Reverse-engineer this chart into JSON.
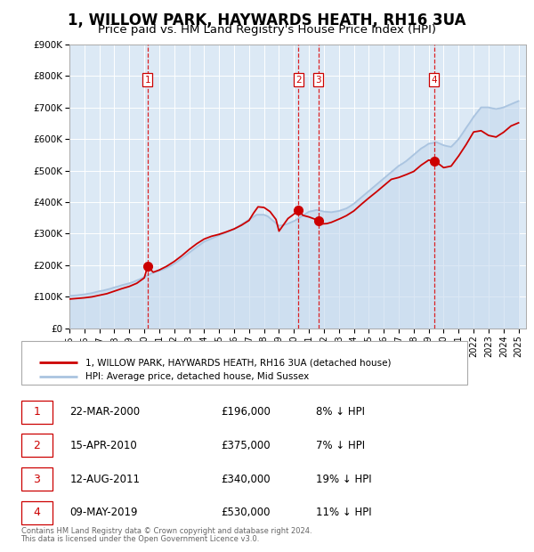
{
  "title": "1, WILLOW PARK, HAYWARDS HEATH, RH16 3UA",
  "subtitle": "Price paid vs. HM Land Registry's House Price Index (HPI)",
  "title_fontsize": 12,
  "subtitle_fontsize": 9.5,
  "background_color": "#ffffff",
  "plot_bg_color": "#dce9f5",
  "grid_color": "#ffffff",
  "ylim": [
    0,
    900000
  ],
  "yticks": [
    0,
    100000,
    200000,
    300000,
    400000,
    500000,
    600000,
    700000,
    800000,
    900000
  ],
  "ytick_labels": [
    "£0",
    "£100K",
    "£200K",
    "£300K",
    "£400K",
    "£500K",
    "£600K",
    "£700K",
    "£800K",
    "£900K"
  ],
  "xlim_start": 1995.0,
  "xlim_end": 2025.5,
  "xticks": [
    1995,
    1996,
    1997,
    1998,
    1999,
    2000,
    2001,
    2002,
    2003,
    2004,
    2005,
    2006,
    2007,
    2008,
    2009,
    2010,
    2011,
    2012,
    2013,
    2014,
    2015,
    2016,
    2017,
    2018,
    2019,
    2020,
    2021,
    2022,
    2023,
    2024,
    2025
  ],
  "hpi_color": "#aac4e0",
  "hpi_fill_color": "#c5d9ee",
  "price_color": "#cc0000",
  "sale_marker_color": "#cc0000",
  "sale_marker_size": 7,
  "dashed_line_color": "#dd0000",
  "sale_label_color": "#cc0000",
  "sale_label_bg": "#ffffff",
  "sale_label_border": "#cc0000",
  "sales": [
    {
      "num": 1,
      "year": 2000.22,
      "price": 196000
    },
    {
      "num": 2,
      "year": 2010.29,
      "price": 375000
    },
    {
      "num": 3,
      "year": 2011.62,
      "price": 340000
    },
    {
      "num": 4,
      "year": 2019.35,
      "price": 530000
    }
  ],
  "legend_label_price": "1, WILLOW PARK, HAYWARDS HEATH, RH16 3UA (detached house)",
  "legend_label_hpi": "HPI: Average price, detached house, Mid Sussex",
  "table_entries": [
    {
      "num": 1,
      "date": "22-MAR-2000",
      "price": "£196,000",
      "pct": "8% ↓ HPI"
    },
    {
      "num": 2,
      "date": "15-APR-2010",
      "price": "£375,000",
      "pct": "7% ↓ HPI"
    },
    {
      "num": 3,
      "date": "12-AUG-2011",
      "price": "£340,000",
      "pct": "19% ↓ HPI"
    },
    {
      "num": 4,
      "date": "09-MAY-2019",
      "price": "£530,000",
      "pct": "11% ↓ HPI"
    }
  ],
  "footnote1": "Contains HM Land Registry data © Crown copyright and database right 2024.",
  "footnote2": "This data is licensed under the Open Government Licence v3.0.",
  "hpi_data_years": [
    1995.0,
    1995.25,
    1995.5,
    1995.75,
    1996.0,
    1996.25,
    1996.5,
    1996.75,
    1997.0,
    1997.25,
    1997.5,
    1997.75,
    1998.0,
    1998.25,
    1998.5,
    1998.75,
    1999.0,
    1999.25,
    1999.5,
    1999.75,
    2000.0,
    2000.25,
    2000.5,
    2000.75,
    2001.0,
    2001.25,
    2001.5,
    2001.75,
    2002.0,
    2002.25,
    2002.5,
    2002.75,
    2003.0,
    2003.25,
    2003.5,
    2003.75,
    2004.0,
    2004.25,
    2004.5,
    2004.75,
    2005.0,
    2005.25,
    2005.5,
    2005.75,
    2006.0,
    2006.25,
    2006.5,
    2006.75,
    2007.0,
    2007.25,
    2007.5,
    2007.75,
    2008.0,
    2008.25,
    2008.5,
    2008.75,
    2009.0,
    2009.25,
    2009.5,
    2009.75,
    2010.0,
    2010.25,
    2010.5,
    2010.75,
    2011.0,
    2011.25,
    2011.5,
    2011.75,
    2012.0,
    2012.25,
    2012.5,
    2012.75,
    2013.0,
    2013.25,
    2013.5,
    2013.75,
    2014.0,
    2014.25,
    2014.5,
    2014.75,
    2015.0,
    2015.25,
    2015.5,
    2015.75,
    2016.0,
    2016.25,
    2016.5,
    2016.75,
    2017.0,
    2017.25,
    2017.5,
    2017.75,
    2018.0,
    2018.25,
    2018.5,
    2018.75,
    2019.0,
    2019.25,
    2019.5,
    2019.75,
    2020.0,
    2020.25,
    2020.5,
    2020.75,
    2021.0,
    2021.25,
    2021.5,
    2021.75,
    2022.0,
    2022.25,
    2022.5,
    2022.75,
    2023.0,
    2023.25,
    2023.5,
    2023.75,
    2024.0,
    2024.25,
    2024.5,
    2024.75,
    2025.0
  ],
  "hpi_data_values": [
    103000,
    104000,
    105000,
    106500,
    108000,
    110000,
    112000,
    115000,
    118000,
    120000,
    123000,
    126000,
    130000,
    133000,
    137000,
    140000,
    143000,
    147000,
    152000,
    157000,
    163000,
    169000,
    175000,
    179000,
    183000,
    187000,
    192000,
    198000,
    205000,
    213000,
    222000,
    231000,
    240000,
    249000,
    258000,
    266000,
    275000,
    280000,
    285000,
    290000,
    295000,
    300000,
    305000,
    310000,
    315000,
    322000,
    330000,
    337000,
    345000,
    352000,
    360000,
    360000,
    360000,
    355000,
    345000,
    335000,
    325000,
    327000,
    330000,
    335000,
    340000,
    347000,
    355000,
    362000,
    370000,
    372000,
    375000,
    373000,
    370000,
    369000,
    368000,
    370000,
    372000,
    376000,
    380000,
    387000,
    395000,
    405000,
    415000,
    425000,
    435000,
    445000,
    455000,
    465000,
    475000,
    485000,
    495000,
    505000,
    515000,
    522000,
    530000,
    540000,
    550000,
    560000,
    570000,
    577000,
    585000,
    587000,
    590000,
    585000,
    580000,
    577000,
    575000,
    587000,
    600000,
    617000,
    635000,
    652000,
    670000,
    685000,
    700000,
    700000,
    700000,
    697000,
    695000,
    697000,
    700000,
    705000,
    710000,
    715000,
    720000
  ],
  "price_data_years": [
    1995.0,
    1995.5,
    1996.0,
    1996.5,
    1997.0,
    1997.5,
    1998.0,
    1998.5,
    1999.0,
    1999.5,
    2000.0,
    2000.22,
    2000.6,
    2001.0,
    2001.5,
    2002.0,
    2002.5,
    2003.0,
    2003.5,
    2004.0,
    2004.5,
    2005.0,
    2005.5,
    2006.0,
    2006.5,
    2007.0,
    2007.3,
    2007.6,
    2008.0,
    2008.4,
    2008.8,
    2009.0,
    2009.3,
    2009.6,
    2010.0,
    2010.29,
    2010.6,
    2011.0,
    2011.4,
    2011.62,
    2011.9,
    2012.2,
    2012.5,
    2012.8,
    2013.1,
    2013.5,
    2014.0,
    2014.5,
    2015.0,
    2015.5,
    2016.0,
    2016.5,
    2017.0,
    2017.5,
    2018.0,
    2018.5,
    2019.0,
    2019.35,
    2019.7,
    2020.0,
    2020.5,
    2021.0,
    2021.5,
    2022.0,
    2022.5,
    2023.0,
    2023.5,
    2024.0,
    2024.5,
    2025.0
  ],
  "price_data_values": [
    93000,
    95000,
    97000,
    100000,
    105000,
    110000,
    118000,
    126000,
    133000,
    143000,
    160000,
    196000,
    178000,
    185000,
    197000,
    212000,
    230000,
    250000,
    268000,
    283000,
    292000,
    298000,
    306000,
    315000,
    327000,
    342000,
    365000,
    385000,
    383000,
    370000,
    345000,
    308000,
    328000,
    348000,
    362000,
    375000,
    358000,
    353000,
    346000,
    340000,
    331000,
    332000,
    336000,
    342000,
    348000,
    357000,
    372000,
    393000,
    413000,
    432000,
    452000,
    472000,
    478000,
    487000,
    497000,
    517000,
    533000,
    530000,
    520000,
    509000,
    514000,
    546000,
    582000,
    622000,
    626000,
    611000,
    606000,
    621000,
    641000,
    651000
  ]
}
